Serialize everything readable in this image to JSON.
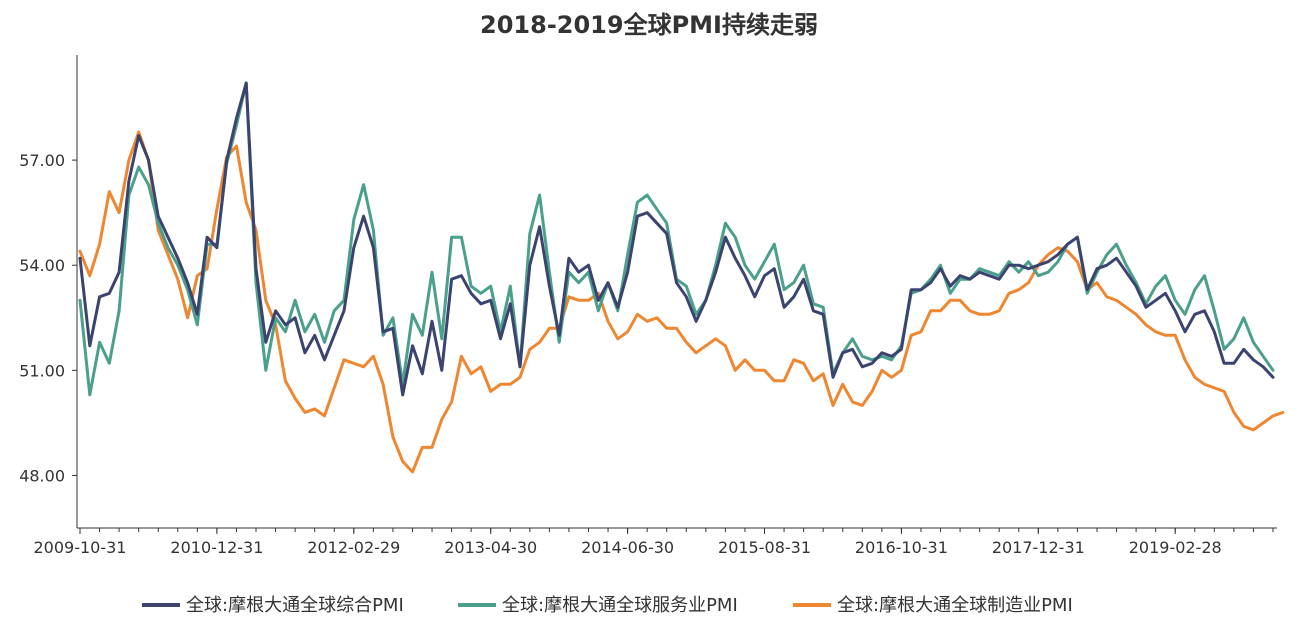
{
  "chart_data": {
    "type": "line",
    "title": "2018-2019全球PMI持续走弱",
    "xlabel": "",
    "ylabel": "",
    "ylim": [
      46.5,
      60.0
    ],
    "yticks": [
      "48.00",
      "51.00",
      "54.00",
      "57.00"
    ],
    "ytick_values": [
      48,
      51,
      54,
      57
    ],
    "xticks": [
      "2009-10-31",
      "2010-12-31",
      "2012-02-29",
      "2013-04-30",
      "2014-06-30",
      "2015-08-31",
      "2016-10-31",
      "2017-12-31",
      "2019-02-28"
    ],
    "xtick_index": [
      0,
      14,
      28,
      42,
      56,
      70,
      84,
      98,
      112
    ],
    "x_start": "2009-10-31",
    "x_end": "2019-10-31",
    "legend_position": "bottom",
    "grid": false,
    "colors": [
      "#3b4370",
      "#4aa08a",
      "#ef8630"
    ],
    "series": [
      {
        "name": "全球:摩根大通全球综合PMI",
        "values": [
          54.2,
          51.7,
          53.1,
          53.2,
          53.8,
          56.4,
          57.7,
          57.0,
          55.4,
          54.8,
          54.2,
          53.5,
          52.6,
          54.8,
          54.5,
          57.0,
          58.2,
          59.2,
          53.9,
          51.8,
          52.7,
          52.3,
          52.5,
          51.5,
          52.0,
          51.3,
          52.0,
          52.7,
          54.5,
          55.4,
          54.5,
          52.1,
          52.2,
          50.3,
          51.7,
          50.9,
          52.4,
          51.0,
          53.6,
          53.7,
          53.2,
          52.9,
          53.0,
          51.9,
          52.9,
          51.1,
          54.0,
          55.1,
          53.4,
          52.0,
          54.2,
          53.8,
          54.0,
          53.0,
          53.5,
          52.8,
          53.8,
          55.4,
          55.5,
          55.2,
          54.9,
          53.5,
          53.1,
          52.4,
          53.0,
          53.8,
          54.8,
          54.2,
          53.7,
          53.1,
          53.7,
          53.9,
          52.8,
          53.1,
          53.6,
          52.7,
          52.6,
          50.8,
          51.5,
          51.6,
          51.1,
          51.2,
          51.5,
          51.4,
          51.6,
          53.3,
          53.3,
          53.5,
          53.9,
          53.4,
          53.7,
          53.6,
          53.8,
          53.7,
          53.6,
          54.0,
          54.0,
          53.9,
          54.0,
          54.1,
          54.3,
          54.6,
          54.8,
          53.3,
          53.9,
          54.0,
          54.2,
          53.8,
          53.4,
          52.8,
          53.0,
          53.2,
          52.7,
          52.1,
          52.6,
          52.7,
          52.1,
          51.2,
          51.2,
          51.6,
          51.3,
          51.1,
          50.8
        ]
      },
      {
        "name": "全球:摩根大通全球服务业PMI",
        "values": [
          53.0,
          50.3,
          51.8,
          51.2,
          52.7,
          56.0,
          56.8,
          56.3,
          55.2,
          54.5,
          54.0,
          53.3,
          52.3,
          54.6,
          54.6,
          56.9,
          58.0,
          59.2,
          53.5,
          51.0,
          52.5,
          52.1,
          53.0,
          52.1,
          52.6,
          51.8,
          52.7,
          53.0,
          55.3,
          56.3,
          55.0,
          52.0,
          52.5,
          50.6,
          52.6,
          52.0,
          53.8,
          51.9,
          54.8,
          54.8,
          53.4,
          53.2,
          53.4,
          52.1,
          53.4,
          51.1,
          54.9,
          56.0,
          53.8,
          51.8,
          53.8,
          53.5,
          53.8,
          52.7,
          53.5,
          52.7,
          54.3,
          55.8,
          56.0,
          55.6,
          55.2,
          53.6,
          53.4,
          52.6,
          53.0,
          54.0,
          55.2,
          54.8,
          54.0,
          53.6,
          54.1,
          54.6,
          53.3,
          53.5,
          54.0,
          52.9,
          52.8,
          50.9,
          51.5,
          51.9,
          51.4,
          51.3,
          51.4,
          51.3,
          51.7,
          53.2,
          53.3,
          53.6,
          54.0,
          53.2,
          53.6,
          53.6,
          53.9,
          53.8,
          53.7,
          54.1,
          53.8,
          54.1,
          53.7,
          53.8,
          54.1,
          54.6,
          54.8,
          53.2,
          53.8,
          54.3,
          54.6,
          54.0,
          53.5,
          52.9,
          53.4,
          53.7,
          53.0,
          52.6,
          53.3,
          53.7,
          52.7,
          51.6,
          51.9,
          52.5,
          51.8,
          51.4,
          51.0
        ]
      },
      {
        "name": "全球:摩根大通全球制造业PMI",
        "values": [
          54.4,
          53.7,
          54.6,
          56.1,
          55.5,
          57.0,
          57.8,
          57.0,
          55.0,
          54.3,
          53.6,
          52.5,
          53.7,
          53.9,
          55.6,
          57.1,
          57.4,
          55.8,
          55.0,
          53.0,
          52.3,
          50.7,
          50.2,
          49.8,
          49.9,
          49.7,
          50.5,
          51.3,
          51.2,
          51.1,
          51.4,
          50.6,
          49.1,
          48.4,
          48.1,
          48.8,
          48.8,
          49.6,
          50.1,
          51.4,
          50.9,
          51.1,
          50.4,
          50.6,
          50.6,
          50.8,
          51.6,
          51.8,
          52.2,
          52.2,
          53.1,
          53.0,
          53.0,
          53.2,
          52.4,
          51.9,
          52.1,
          52.6,
          52.4,
          52.5,
          52.2,
          52.2,
          51.8,
          51.5,
          51.7,
          51.9,
          51.7,
          51.0,
          51.3,
          51.0,
          51.0,
          50.7,
          50.7,
          51.3,
          51.2,
          50.7,
          50.9,
          50.0,
          50.6,
          50.1,
          50.0,
          50.4,
          51.0,
          50.8,
          51.0,
          52.0,
          52.1,
          52.7,
          52.7,
          53.0,
          53.0,
          52.7,
          52.6,
          52.6,
          52.7,
          53.2,
          53.3,
          53.5,
          54.0,
          54.3,
          54.5,
          54.4,
          54.1,
          53.3,
          53.5,
          53.1,
          53.0,
          52.8,
          52.6,
          52.3,
          52.1,
          52.0,
          52.0,
          51.3,
          50.8,
          50.6,
          50.5,
          50.4,
          49.8,
          49.4,
          49.3,
          49.5,
          49.7,
          49.8
        ]
      }
    ]
  }
}
